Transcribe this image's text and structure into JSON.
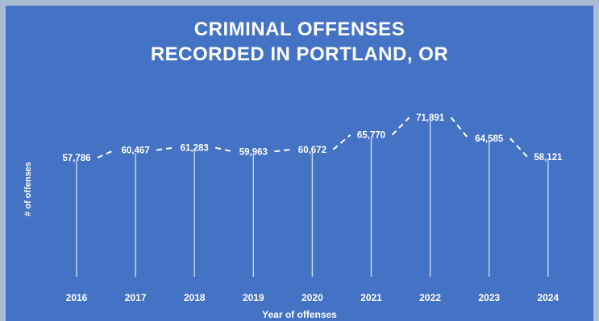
{
  "title_lines": [
    "CRIMINAL OFFENSES",
    "RECORDED IN PORTLAND, OR"
  ],
  "colors": {
    "background": "#4472c4",
    "outer": "#a9bcd2",
    "text": "#ffffff",
    "drop_line": "#dbe6f5"
  },
  "chart_data": {
    "type": "line",
    "title": "CRIMINAL OFFENSES RECORDED IN PORTLAND, OR",
    "xlabel": "Year of offenses",
    "ylabel": "# of offenses",
    "categories": [
      "2016",
      "2017",
      "2018",
      "2019",
      "2020",
      "2021",
      "2022",
      "2023",
      "2024"
    ],
    "series": [
      {
        "values": [
          57786,
          60467,
          61283,
          59963,
          60672,
          65770,
          71891,
          64585,
          58121
        ],
        "labels": [
          "57,786",
          "60,467",
          "61,283",
          "59,963",
          "60,672",
          "65,770",
          "71,891",
          "64,585",
          "58,121"
        ],
        "line_style": "dashed",
        "drop_lines": true
      }
    ],
    "grid": false,
    "legend": "none"
  }
}
